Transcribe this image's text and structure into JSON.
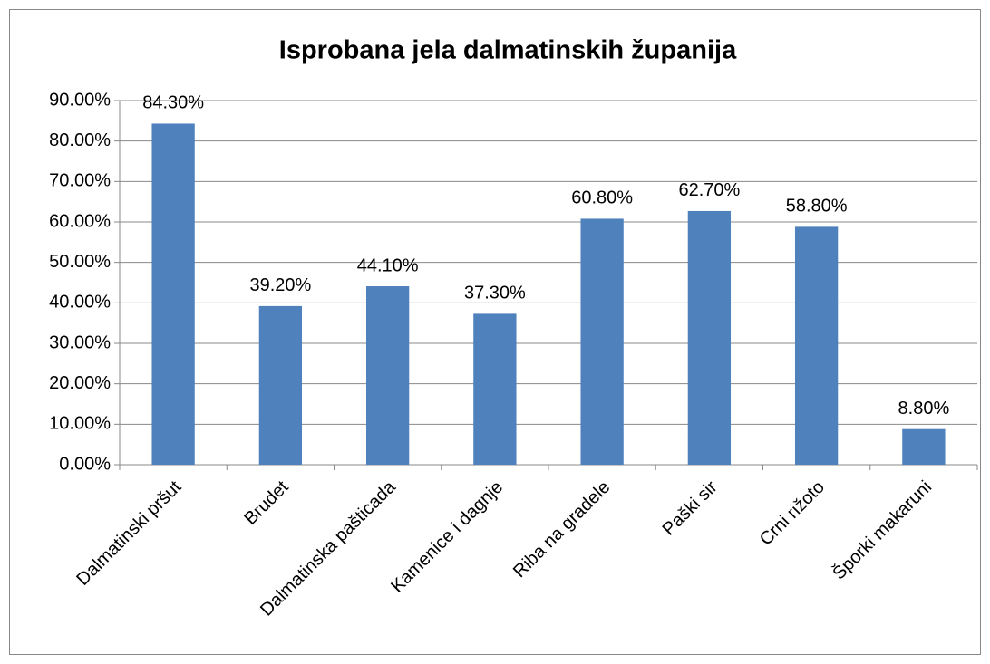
{
  "chart_data": {
    "type": "bar",
    "title": "Isprobana jela dalmatinskih županija",
    "categories": [
      "Dalmatinski pršut",
      "Brudet",
      "Dalmatinska pašticada",
      "Kamenice i dagnje",
      "Riba na gradele",
      "Paški sir",
      "Crni rižoto",
      "Šporki makaruni"
    ],
    "values": [
      84.3,
      39.2,
      44.1,
      37.3,
      60.8,
      62.7,
      58.8,
      8.8
    ],
    "value_labels": [
      "84.30%",
      "39.20%",
      "44.10%",
      "37.30%",
      "60.80%",
      "62.70%",
      "58.80%",
      "8.80%"
    ],
    "color": "#4f81bd",
    "ylim": [
      0,
      90
    ],
    "yticks": [
      {
        "value": 0,
        "label": "0.00%"
      },
      {
        "value": 10,
        "label": "10.00%"
      },
      {
        "value": 20,
        "label": "20.00%"
      },
      {
        "value": 30,
        "label": "30.00%"
      },
      {
        "value": 40,
        "label": "40.00%"
      },
      {
        "value": 50,
        "label": "50.00%"
      },
      {
        "value": 60,
        "label": "60.00%"
      },
      {
        "value": 70,
        "label": "70.00%"
      },
      {
        "value": 80,
        "label": "80.00%"
      },
      {
        "value": 90,
        "label": "90.00%"
      }
    ],
    "grid": true
  }
}
